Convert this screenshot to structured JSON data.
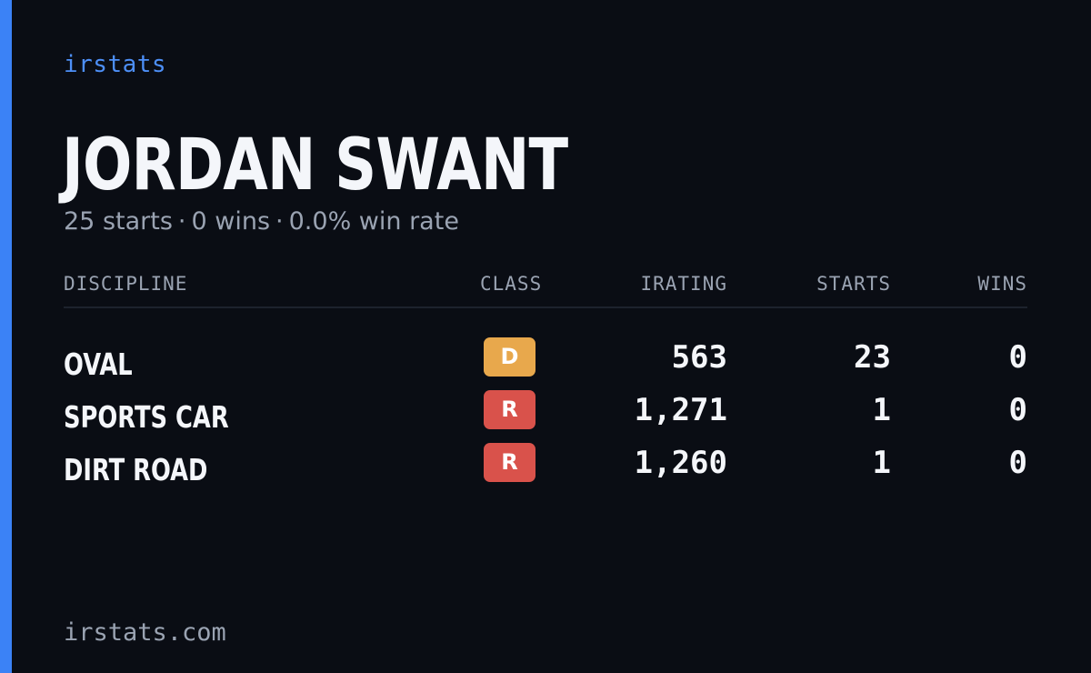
{
  "brand": "irstats",
  "player": {
    "name": "JORDAN SWANT",
    "starts_text": "25 starts",
    "wins_text": "0 wins",
    "win_rate_text": "0.0% win rate",
    "separator": "·"
  },
  "table": {
    "headers": {
      "discipline": "DISCIPLINE",
      "class": "CLASS",
      "irating": "IRATING",
      "starts": "STARTS",
      "wins": "WINS"
    },
    "rows": [
      {
        "discipline": "OVAL",
        "class": "D",
        "class_color": "#e8a84c",
        "irating": "563",
        "starts": "23",
        "wins": "0"
      },
      {
        "discipline": "SPORTS CAR",
        "class": "R",
        "class_color": "#d9524b",
        "irating": "1,271",
        "starts": "1",
        "wins": "0"
      },
      {
        "discipline": "DIRT ROAD",
        "class": "R",
        "class_color": "#d9524b",
        "irating": "1,260",
        "starts": "1",
        "wins": "0"
      }
    ]
  },
  "footer": "irstats.com",
  "colors": {
    "background": "#0a0d14",
    "accent": "#3b82f6",
    "text_primary": "#f4f6fa",
    "text_muted": "#9aa3b2"
  }
}
